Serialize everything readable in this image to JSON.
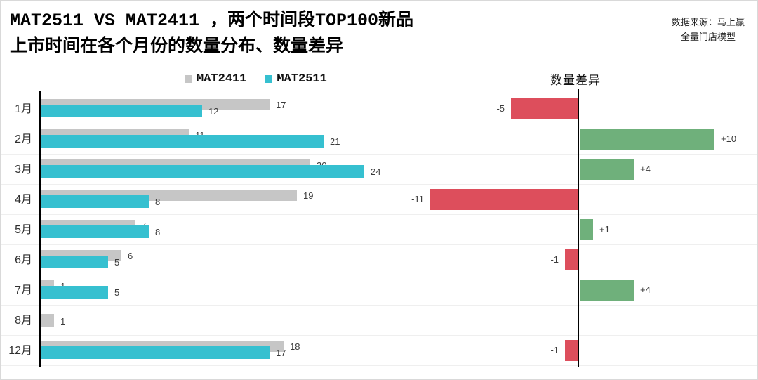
{
  "title": {
    "line1": "MAT2511 VS MAT2411 ，两个时间段TOP100新品",
    "line2": "上市时间在各个月份的数量分布、数量差异"
  },
  "source": {
    "line1": "数据来源：马上赢",
    "line2": "全量门店模型"
  },
  "legend": [
    {
      "label": "MAT2411",
      "color": "#c6c6c6"
    },
    {
      "label": "MAT2511",
      "color": "#36c0d0"
    }
  ],
  "diff_header": "数量差异",
  "colors": {
    "mat2411_bar": "#c6c6c6",
    "mat2511_bar": "#36c0d0",
    "diff_positive": "#6fb07b",
    "diff_negative": "#dd4e5c",
    "axis": "#000000",
    "gridline": "#efefef"
  },
  "chart_data": {
    "type": "bar",
    "orientation": "horizontal",
    "title": "MAT2511 VS MAT2411 ，两个时间段TOP100新品上市时间在各个月份的数量分布、数量差异",
    "categories": [
      "1月",
      "2月",
      "3月",
      "4月",
      "5月",
      "6月",
      "7月",
      "8月",
      "12月"
    ],
    "series": [
      {
        "name": "MAT2411",
        "color": "#c6c6c6",
        "values": [
          17,
          11,
          20,
          19,
          7,
          6,
          1,
          1,
          18
        ]
      },
      {
        "name": "MAT2511",
        "color": "#36c0d0",
        "values": [
          12,
          21,
          24,
          8,
          8,
          5,
          5,
          null,
          17
        ]
      }
    ],
    "diff_series": {
      "name": "数量差异",
      "values": [
        -5,
        10,
        4,
        -11,
        1,
        -1,
        4,
        null,
        -1
      ],
      "labels": [
        "-5",
        "+10",
        "+4",
        "-11",
        "+1",
        "-1",
        "+4",
        "",
        "-1"
      ],
      "positive_color": "#6fb07b",
      "negative_color": "#dd4e5c"
    },
    "xlim_left_chart": [
      0,
      25
    ],
    "xlim_diff_chart": [
      -11,
      13
    ],
    "legend_position": "top",
    "grid": "horizontal-row-separators",
    "value_labels": "shown-at-bar-ends"
  }
}
